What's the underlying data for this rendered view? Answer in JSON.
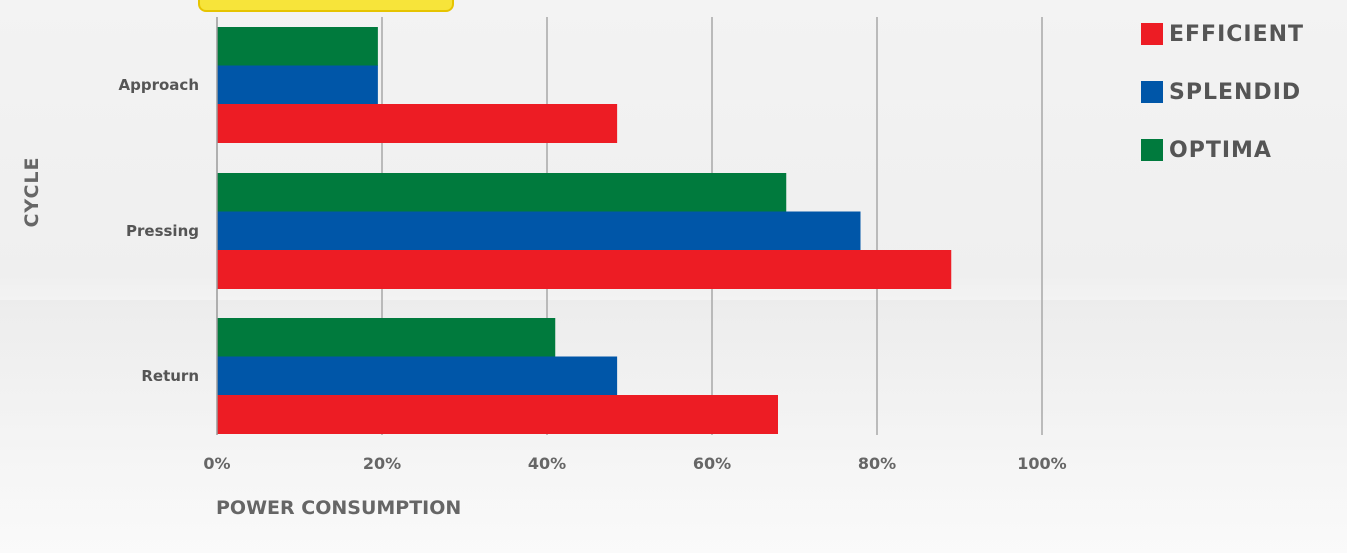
{
  "chart_data": {
    "type": "bar",
    "orientation": "horizontal",
    "categories": [
      "Approach",
      "Pressing",
      "Return"
    ],
    "series": [
      {
        "name": "OPTIMA",
        "color": "#007a3d",
        "values": [
          19.5,
          69,
          41
        ]
      },
      {
        "name": "SPLENDID",
        "color": "#0056a8",
        "values": [
          19.5,
          78,
          48.5
        ]
      },
      {
        "name": "EFFICIENT",
        "color": "#ed1c24",
        "values": [
          48.5,
          89,
          68
        ]
      }
    ],
    "legend_order": [
      "EFFICIENT",
      "SPLENDID",
      "OPTIMA"
    ],
    "xlabel": "POWER CONSUMPTION",
    "ylabel": "CYCLE",
    "xlim": [
      0,
      100
    ],
    "xticks": [
      "0%",
      "20%",
      "40%",
      "60%",
      "80%",
      "100%"
    ],
    "grid": true,
    "legend_position": "top-right",
    "gridline_color": "#a8a8a8"
  }
}
